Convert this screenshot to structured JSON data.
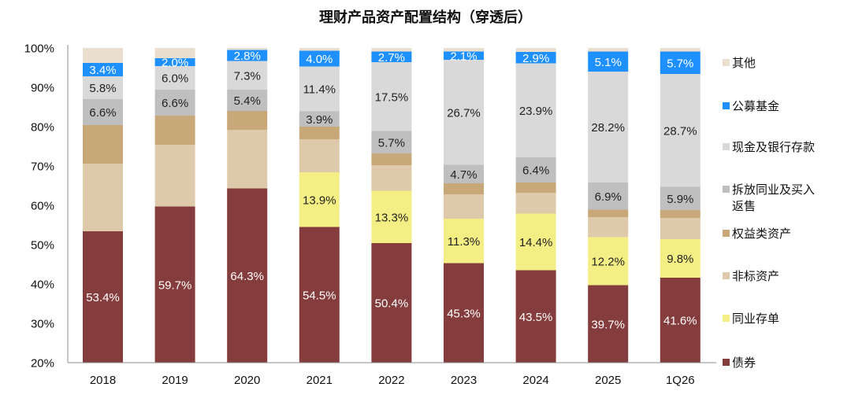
{
  "chart_data": {
    "type": "bar",
    "stacked": true,
    "title": "理财产品资产配置结构（穿透后）",
    "xlabel": "",
    "ylabel": "",
    "ylim": [
      20,
      100
    ],
    "yticks": [
      "20%",
      "30%",
      "40%",
      "50%",
      "60%",
      "70%",
      "80%",
      "90%",
      "100%"
    ],
    "ytick_values": [
      20,
      30,
      40,
      50,
      60,
      70,
      80,
      90,
      100
    ],
    "grid": false,
    "legend_position": "right",
    "categories": [
      "2018",
      "2019",
      "2020",
      "2021",
      "2022",
      "2023",
      "2024",
      "2025",
      "1Q26"
    ],
    "series": [
      {
        "name": "债券",
        "color": "#843C3C",
        "label_color": "#FFFFFF",
        "show_labels": true,
        "values": [
          53.4,
          59.7,
          64.3,
          54.5,
          50.4,
          45.3,
          43.5,
          39.7,
          41.6
        ]
      },
      {
        "name": "同业存单",
        "color": "#F4EF84",
        "label_color": "#222222",
        "show_labels": true,
        "values": [
          0,
          0,
          0,
          13.9,
          13.3,
          11.3,
          14.4,
          12.2,
          9.8
        ]
      },
      {
        "name": "非标资产",
        "color": "#DECAAB",
        "label_color": "#222222",
        "show_labels": false,
        "values": [
          17.2,
          15.7,
          14.9,
          8.4,
          6.5,
          6.2,
          5.3,
          5.1,
          5.4
        ]
      },
      {
        "name": "权益类资产",
        "color": "#C8A878",
        "label_color": "#222222",
        "show_labels": false,
        "values": [
          9.8,
          7.4,
          4.8,
          3.2,
          3.0,
          2.8,
          2.6,
          1.9,
          2.0
        ]
      },
      {
        "name": "拆放同业及买入返售",
        "color": "#BFBFBF",
        "label_color": "#222222",
        "show_labels": true,
        "values": [
          6.6,
          6.6,
          5.4,
          3.9,
          5.7,
          4.7,
          6.4,
          6.9,
          5.9
        ]
      },
      {
        "name": "现金及银行存款",
        "color": "#D9D9D9",
        "label_color": "#222222",
        "show_labels": true,
        "values": [
          5.8,
          6.0,
          7.3,
          11.4,
          17.5,
          26.7,
          23.9,
          28.2,
          28.7
        ]
      },
      {
        "name": "公募基金",
        "color": "#1E90FF",
        "label_color": "#FFFFFF",
        "show_labels": true,
        "values": [
          3.4,
          2.0,
          2.8,
          4.0,
          2.7,
          2.1,
          2.9,
          5.1,
          5.7
        ]
      },
      {
        "name": "其他",
        "color": "#EADFCF",
        "label_color": "#222222",
        "show_labels": false,
        "values": [
          3.8,
          2.6,
          0.5,
          0.7,
          0.9,
          0.9,
          1.0,
          1.0,
          0.9
        ]
      }
    ],
    "legend_order": [
      "其他",
      "公募基金",
      "现金及银行存款",
      "拆放同业及买入返售",
      "权益类资产",
      "非标资产",
      "同业存单",
      "债券"
    ],
    "value_format": "{v}%"
  }
}
